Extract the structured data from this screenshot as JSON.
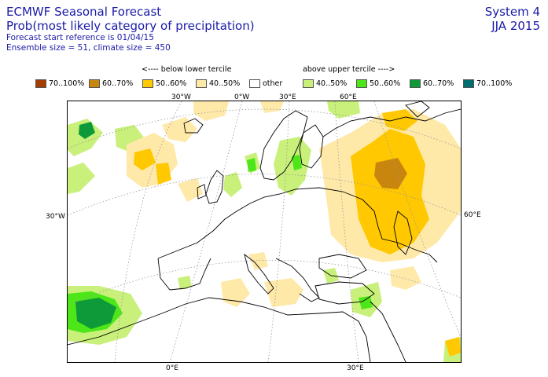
{
  "header": {
    "title": "ECMWF Seasonal Forecast",
    "subtitle": "Prob(most likely category of precipitation)",
    "start_reference": "Forecast start reference is 01/04/15",
    "ensemble": "Ensemble size = 51, climate size = 450",
    "system": "System 4",
    "season": "JJA 2015"
  },
  "legend": {
    "below_head": "<---- below lower tercile",
    "above_head": "above upper tercile ---->",
    "items": [
      {
        "label": "70..100%",
        "color": "#a33d00"
      },
      {
        "label": "60..70%",
        "color": "#c8860e"
      },
      {
        "label": "50..60%",
        "color": "#ffc800"
      },
      {
        "label": "40..50%",
        "color": "#ffe9a8"
      },
      {
        "label": "other",
        "color": "#ffffff"
      },
      {
        "label": "40..50%",
        "color": "#c8f07a"
      },
      {
        "label": "50..60%",
        "color": "#4de619"
      },
      {
        "label": "60..70%",
        "color": "#0e9a38"
      },
      {
        "label": "70..100%",
        "color": "#006e6e"
      }
    ]
  },
  "axis_labels": {
    "top_30w": "30°W",
    "top_0": "0°W",
    "top_30e": "30°E",
    "top_60e": "60°E",
    "left_30w": "30°W",
    "right_60e": "60°E",
    "bottom_0": "0°E",
    "bottom_30e": "30°E"
  }
}
